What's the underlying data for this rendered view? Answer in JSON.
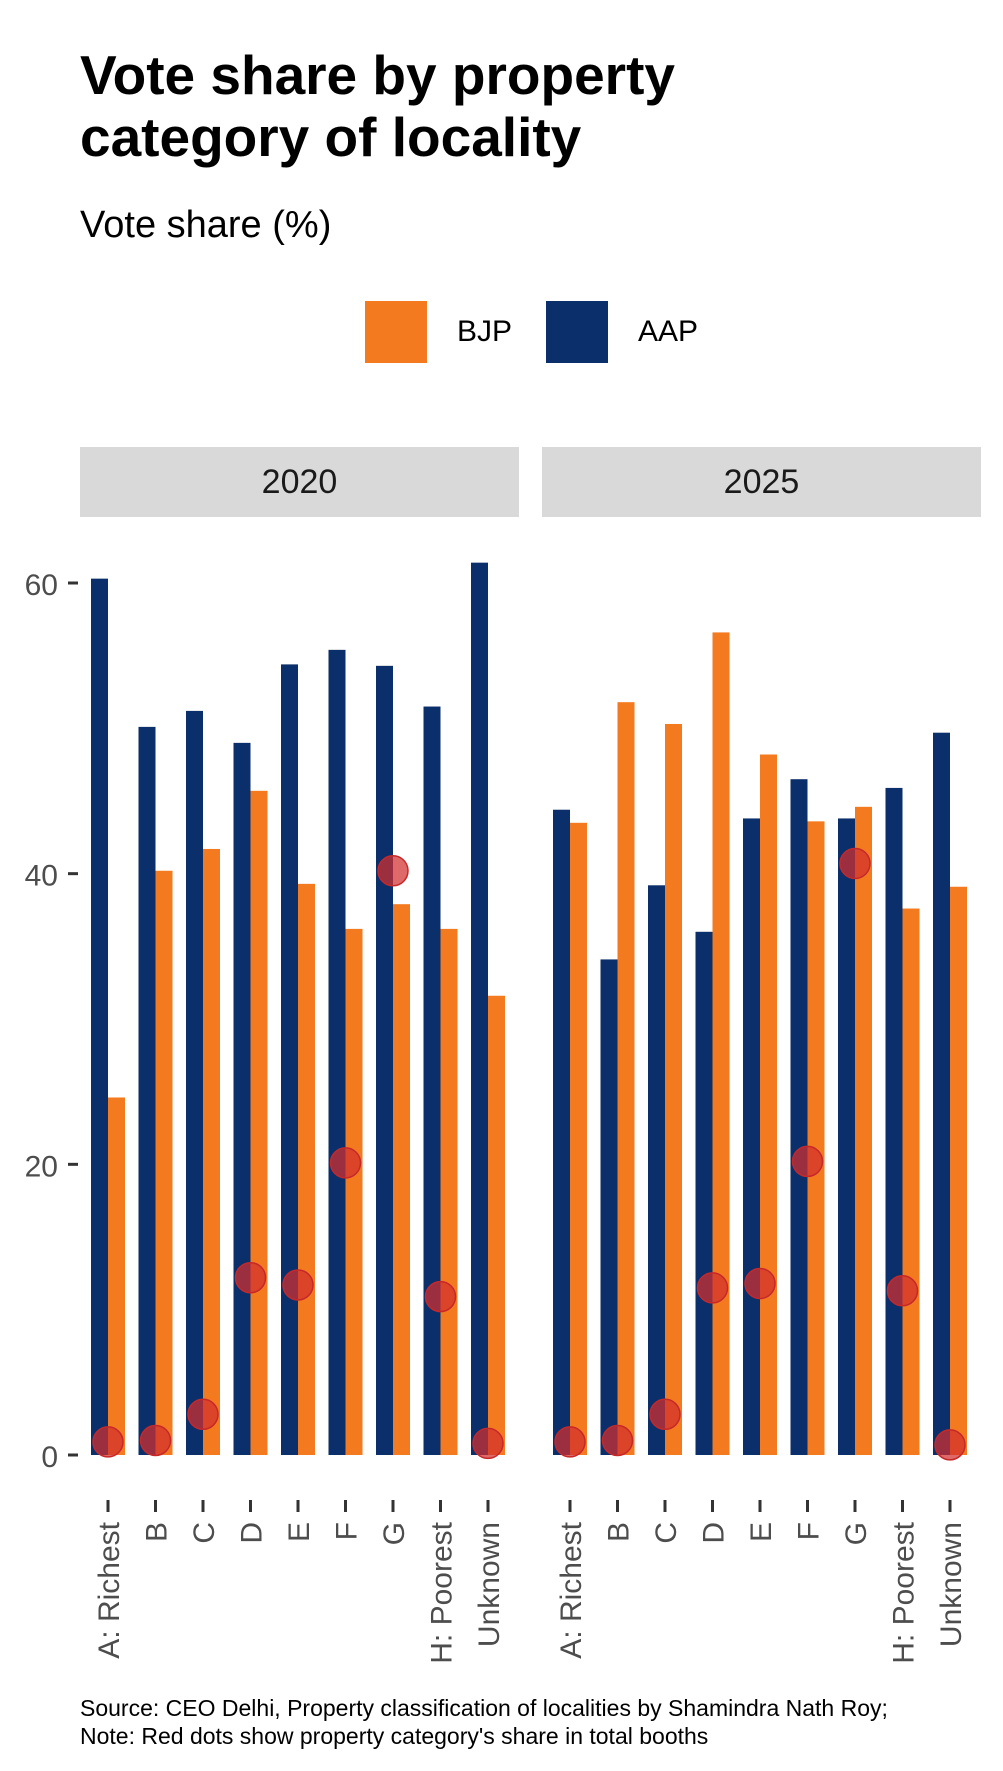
{
  "title": "Vote share by property category of locality",
  "subtitle": "Vote share (%)",
  "legend": [
    {
      "label": "BJP",
      "color": "#f47a1f"
    },
    {
      "label": "AAP",
      "color": "#0b2f6b"
    }
  ],
  "source_lines": [
    "Source: CEO Delhi, Property classification of localities by Shamindra Nath Roy;",
    "Note: Red dots show property category's share in total booths"
  ],
  "chart_data": {
    "type": "bar",
    "y_axis": {
      "ylim": [
        0,
        62
      ],
      "ticks": [
        0,
        20,
        40,
        60
      ]
    },
    "categories": [
      "A: Richest",
      "B",
      "C",
      "D",
      "E",
      "F",
      "G",
      "H: Poorest",
      "Unknown"
    ],
    "colors": {
      "BJP": "#f47a1f",
      "AAP": "#0b2f6b",
      "dots": "#d32f2f"
    },
    "dot_series_label": "Red dots show property category's share in total booths",
    "panels": [
      {
        "year": "2020",
        "series": [
          {
            "name": "AAP",
            "values": [
              60.3,
              50.1,
              51.2,
              49.0,
              54.4,
              55.4,
              54.3,
              51.5,
              61.4
            ]
          },
          {
            "name": "BJP",
            "values": [
              24.6,
              40.2,
              41.7,
              45.7,
              39.3,
              36.2,
              37.9,
              36.2,
              31.6
            ]
          }
        ],
        "booth_share": [
          0.9,
          1.0,
          2.8,
          12.2,
          11.7,
          20.1,
          40.2,
          10.9,
          0.8
        ]
      },
      {
        "year": "2025",
        "series": [
          {
            "name": "AAP",
            "values": [
              44.4,
              34.1,
              39.2,
              36.0,
              43.8,
              46.5,
              43.8,
              45.9,
              49.7
            ]
          },
          {
            "name": "BJP",
            "values": [
              43.5,
              51.8,
              50.3,
              56.6,
              48.2,
              43.6,
              44.6,
              37.6,
              39.1
            ]
          }
        ],
        "booth_share": [
          0.9,
          1.0,
          2.8,
          11.5,
          11.8,
          20.2,
          40.7,
          11.3,
          0.7
        ]
      }
    ]
  }
}
